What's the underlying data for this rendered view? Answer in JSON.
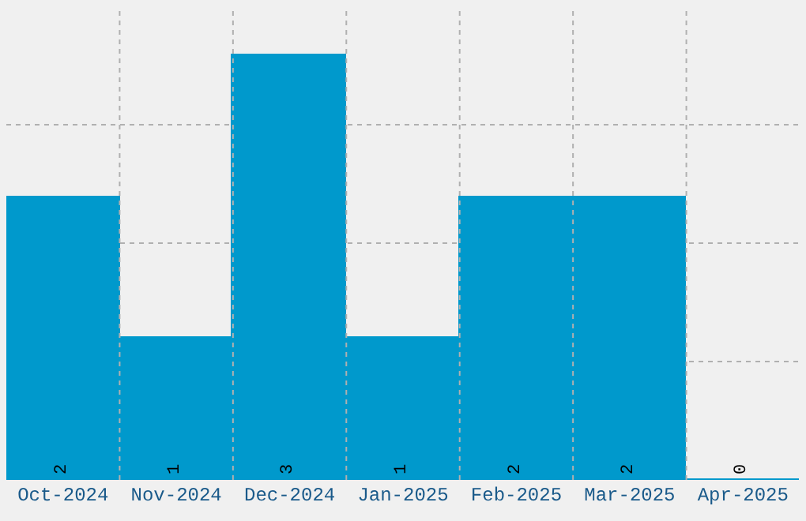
{
  "chart_data": {
    "type": "bar",
    "categories": [
      "Oct-2024",
      "Nov-2024",
      "Dec-2024",
      "Jan-2025",
      "Feb-2025",
      "Mar-2025",
      "Apr-2025"
    ],
    "values": [
      2,
      1,
      3,
      1,
      2,
      2,
      0
    ],
    "color": "#0099cc",
    "data_labels": true,
    "grid": true,
    "tick_labels": "x",
    "ylim": [
      0,
      3.35
    ],
    "yticks": [
      {
        "value": 0.8375,
        "label": null
      },
      {
        "value": 1.675,
        "label": null
      },
      {
        "value": 2.5125,
        "label": null
      }
    ]
  }
}
